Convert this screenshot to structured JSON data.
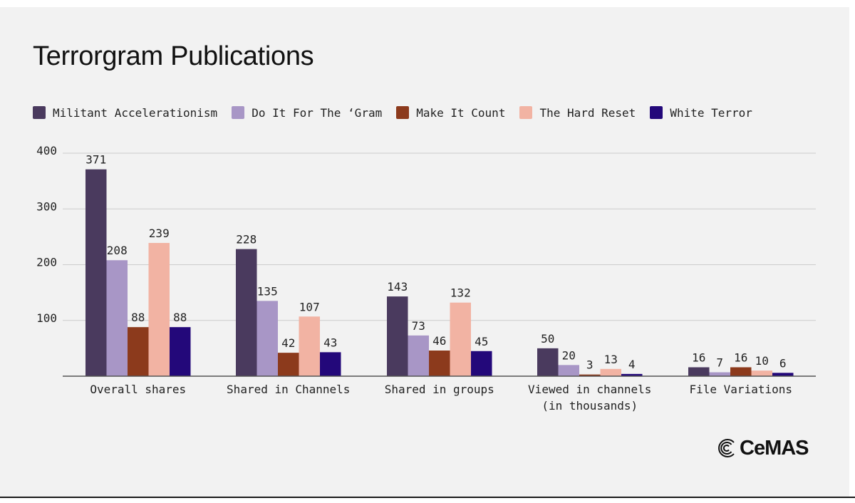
{
  "chart_data": {
    "type": "bar",
    "title": "Terrorgram Publications",
    "categories": [
      [
        "Overall shares"
      ],
      [
        "Shared in Channels"
      ],
      [
        "Shared in groups"
      ],
      [
        "Viewed in channels",
        "(in thousands)"
      ],
      [
        "File Variations"
      ]
    ],
    "series": [
      {
        "name": "Militant Accelerationism",
        "color": "#4a3a5e",
        "values": [
          371,
          228,
          143,
          50,
          16
        ]
      },
      {
        "name": "Do It For The ‘Gram",
        "color": "#a896c6",
        "values": [
          208,
          135,
          73,
          20,
          7
        ]
      },
      {
        "name": "Make It Count",
        "color": "#8c3a1c",
        "values": [
          88,
          42,
          46,
          3,
          16
        ]
      },
      {
        "name": "The Hard Reset",
        "color": "#f2b3a3",
        "values": [
          239,
          107,
          132,
          13,
          10
        ]
      },
      {
        "name": "White Terror",
        "color": "#23087a",
        "values": [
          88,
          43,
          45,
          4,
          6
        ]
      }
    ],
    "yticks": [
      100,
      200,
      300,
      400
    ],
    "ylim": [
      0,
      400
    ],
    "grid": true,
    "legend_position": "top",
    "xlabel": "",
    "ylabel": ""
  },
  "logo": {
    "text": "CeMAS",
    "icon": "concentric-arcs-icon"
  }
}
